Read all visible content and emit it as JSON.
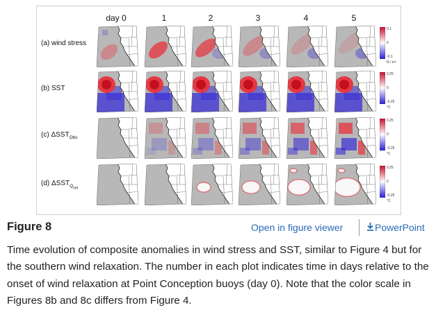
{
  "figure": {
    "days": [
      "day 0",
      "1",
      "2",
      "3",
      "4",
      "5"
    ],
    "rows": [
      {
        "label_main": "(a) wind stress",
        "label_sub": "",
        "label_subsub": "",
        "cbar": {
          "max": "0.1",
          "mid": "0",
          "min": "-0.1",
          "unit": "N / m²"
        }
      },
      {
        "label_main": "(b) SST",
        "label_sub": "",
        "label_subsub": "",
        "cbar": {
          "max": "0.25",
          "mid": "0",
          "min": "-0.25",
          "unit": "°C"
        }
      },
      {
        "label_main": "(c) ΔSST",
        "label_sub": "Obs",
        "label_subsub": "",
        "cbar": {
          "max": "0.25",
          "mid": "0",
          "min": "-0.25",
          "unit": "°C"
        }
      },
      {
        "label_main": "(d) ΔSST",
        "label_sub": "Q",
        "label_subsub": "net",
        "cbar": {
          "max": "0.25",
          "mid": "0",
          "min": "-0.25",
          "unit": "°C"
        }
      }
    ],
    "colors": {
      "positive": "#e8323c",
      "negative": "#3a2fd6",
      "neutral": "#b8b8b8",
      "land": "#ffffff"
    }
  },
  "caption": {
    "title": "Figure 8",
    "viewer_link": "Open in figure viewer",
    "ppt_link": "PowerPoint",
    "text": "Time evolution of composite anomalies in wind stress and SST, similar to Figure 4 but for the southern wind relaxation. The number in each plot indicates time in days relative to the onset of wind relaxation at Point Conception buoys (day 0). Note that the color scale in Figures 8b and 8c differs from Figure 4."
  }
}
